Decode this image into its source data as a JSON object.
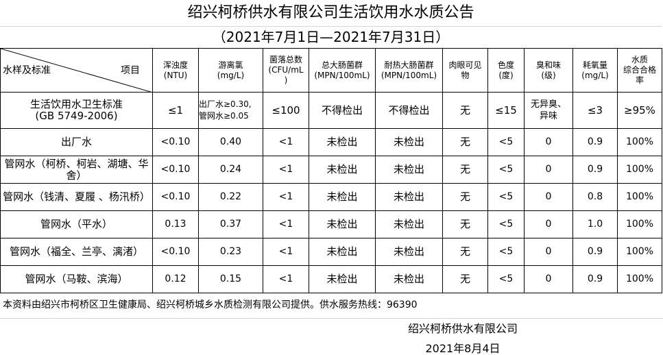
{
  "title": "绍兴柯桥供水有限公司生活饮用水水质公告",
  "period": "（2021年7月1日—2021年7月31日）",
  "header": {
    "row_label": "水样及标准",
    "col_label": "项目",
    "columns": [
      "浑浊度\n(NTU)",
      "游离氯\n(mg/L)",
      "菌落总数\n(CFU/mL\n)",
      "总大肠菌群\n(MPN/100mL)",
      "耐热大肠菌群\n(MPN/100mL)",
      "肉眼可见\n物",
      "色度\n(度)",
      "臭和味\n(级)",
      "耗氧量\n(mg/L)",
      "水质\n综合合格\n率"
    ]
  },
  "standard": {
    "name": "生活饮用水卫生标准",
    "code": "(GB 5749-2006)",
    "values": [
      "≤1",
      "出厂水≥0.30,\n管网水≥0.05",
      "≤100",
      "不得检出",
      "不得检出",
      "无",
      "≤15",
      "无异臭、\n异味",
      "≤3",
      "≥95%"
    ]
  },
  "rows": [
    {
      "name": "出厂水",
      "values": [
        "<0.10",
        "0.40",
        "<1",
        "未检出",
        "未检出",
        "无",
        "<5",
        "0",
        "0.9",
        "100%"
      ]
    },
    {
      "name": "管网水（柯桥、柯岩、湖塘、华舍）",
      "values": [
        "<0.10",
        "0.24",
        "<1",
        "未检出",
        "未检出",
        "无",
        "<5",
        "0",
        "0.9",
        "100%"
      ]
    },
    {
      "name": "管网水（钱清、夏履 、杨汛桥）",
      "values": [
        "<0.10",
        "0.22",
        "<1",
        "未检出",
        "未检出",
        "无",
        "<5",
        "0",
        "0.8",
        "100%"
      ]
    },
    {
      "name": "管网水（平水）",
      "values": [
        "0.13",
        "0.37",
        "<1",
        "未检出",
        "未检出",
        "无",
        "<5",
        "0",
        "1.0",
        "100%"
      ]
    },
    {
      "name": "管网水（福全、兰亭、漓渚）",
      "values": [
        "<0.10",
        "0.23",
        "<1",
        "未检出",
        "未检出",
        "无",
        "<5",
        "0",
        "0.9",
        "100%"
      ]
    },
    {
      "name": "管网水（马鞍、滨海）",
      "values": [
        "0.12",
        "0.15",
        "<1",
        "未检出",
        "未检出",
        "无",
        "<5",
        "0",
        "0.9",
        "100%"
      ]
    }
  ],
  "note": "本资料由绍兴市柯桥区卫生健康局、绍兴柯桥城乡水质检测有限公司提供。供水服务热线：96390",
  "footer": {
    "company": "绍兴柯桥供水有限公司",
    "date": "2021年8月4日"
  }
}
